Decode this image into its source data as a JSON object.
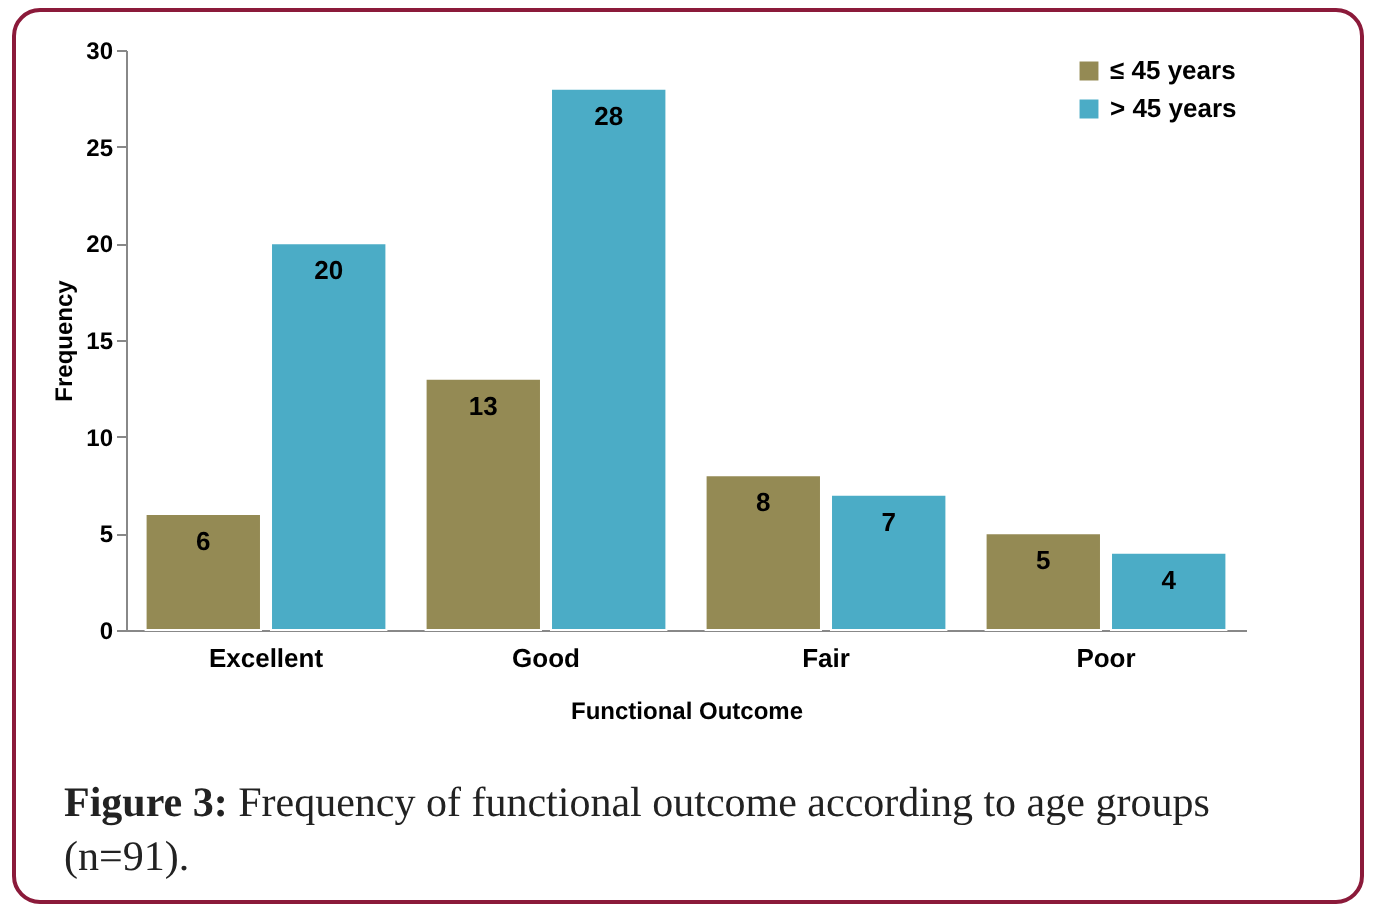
{
  "chart_data": {
    "type": "bar",
    "xlabel": "Functional Outcome",
    "ylabel": "Frequency",
    "categories": [
      "Excellent",
      "Good",
      "Fair",
      "Poor"
    ],
    "series": [
      {
        "name": "≤ 45 years",
        "color": "#948a54",
        "values": [
          6,
          13,
          8,
          5
        ]
      },
      {
        "name": "> 45 years",
        "color": "#4bacc6",
        "values": [
          20,
          28,
          7,
          4
        ]
      }
    ],
    "ylim": [
      0,
      30
    ],
    "yticks": [
      0,
      5,
      10,
      15,
      20,
      25,
      30
    ],
    "grid": false,
    "legend": "top right",
    "data_labels": true,
    "annotations": [
      "Figure 3: Frequency of functional outcome according to age groups (n=91)."
    ]
  }
}
